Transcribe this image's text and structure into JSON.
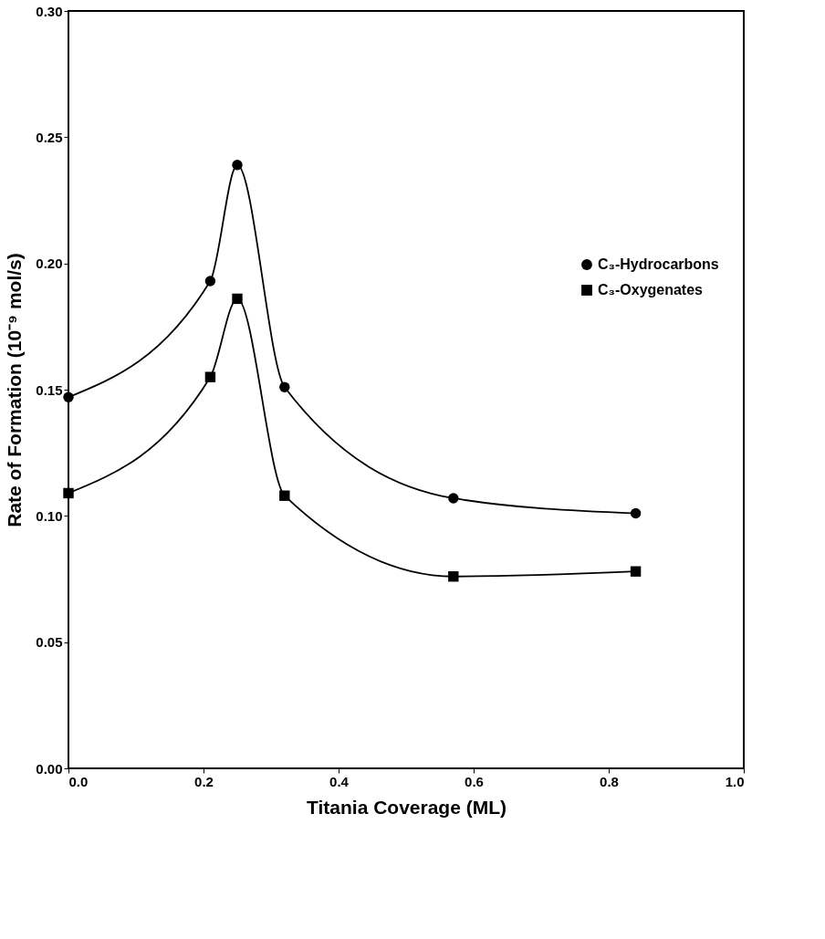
{
  "chart_data": {
    "type": "line",
    "xlabel": "Titania Coverage (ML)",
    "ylabel": "Rate of Formation (10⁻⁹ mol/s)",
    "x": [
      0.0,
      0.21,
      0.25,
      0.32,
      0.57,
      0.84
    ],
    "series": [
      {
        "name": "C₃-Hydrocarbons",
        "color": "#000000",
        "marker": "circle",
        "values": [
          0.147,
          0.193,
          0.239,
          0.151,
          0.107,
          0.101
        ]
      },
      {
        "name": "C₃-Oxygenates",
        "color": "#000000",
        "marker": "square",
        "values": [
          0.109,
          0.155,
          0.186,
          0.108,
          0.076,
          0.078
        ]
      }
    ],
    "xlim": [
      0.0,
      1.0
    ],
    "xticks": [
      {
        "value": 0,
        "label": "0.0"
      },
      0.2,
      0.4,
      0.6,
      0.8,
      {
        "value": 1,
        "label": "1.0"
      }
    ],
    "ylim": [
      0.0,
      0.3
    ],
    "yticks": [
      {
        "value": 0,
        "label": "0.00"
      },
      0.05,
      {
        "value": 0.1,
        "label": "0.10"
      },
      0.15,
      {
        "value": 0.2,
        "label": "0.20"
      },
      0.25,
      {
        "value": 0.3,
        "label": "0.30"
      }
    ],
    "grid": false,
    "legend": "right",
    "line_style": "solid"
  }
}
